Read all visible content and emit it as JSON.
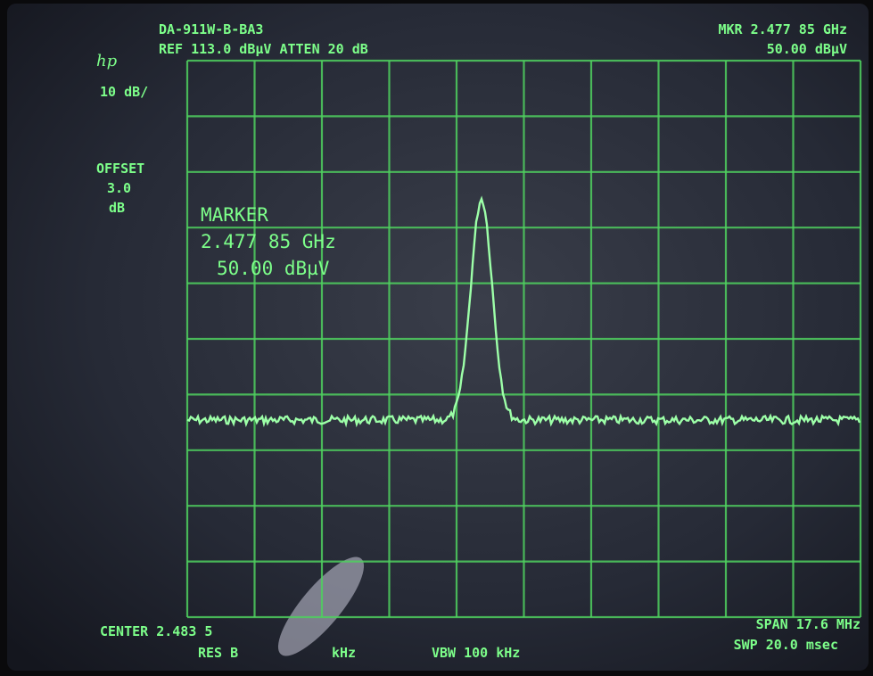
{
  "header": {
    "logo": "hp",
    "model": "DA-911W-B-BA3",
    "ref_line": "REF 113.0 dBµV ATTEN 20 dB",
    "marker_freq": "MKR 2.477 85 GHz",
    "marker_level": "50.00 dBµV"
  },
  "side": {
    "scale": "10 dB/",
    "offset_label": "OFFSET",
    "offset_value": "3.0",
    "offset_unit": "dB"
  },
  "marker": {
    "title": "MARKER",
    "freq": "2.477 85 GHz",
    "level": "50.00 dBµV"
  },
  "footer": {
    "center": "CENTER 2.483 5",
    "res_bw_start": "RES B",
    "res_bw_unit": "kHz",
    "vbw": "VBW 100 kHz",
    "span": "SPAN 17.6 MHz",
    "sweep": "SWP 20.0 msec"
  }
}
